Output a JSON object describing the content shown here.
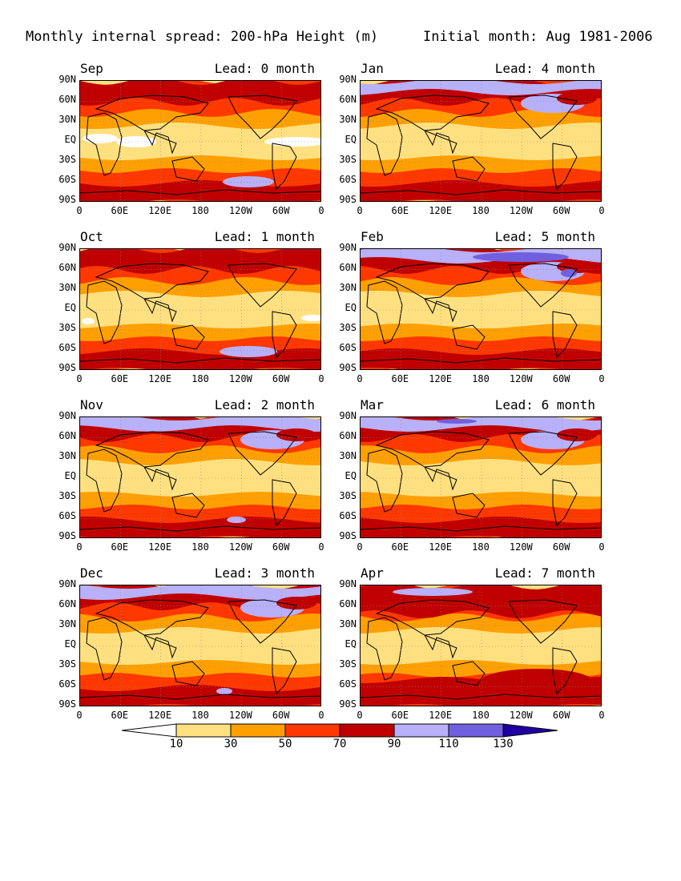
{
  "figure": {
    "title_left": "Monthly internal spread: 200-hPa Height (m)",
    "title_right": "Initial month: Aug 1981-2006"
  },
  "axes": {
    "y_ticks": [
      "90N",
      "60N",
      "30N",
      "EQ",
      "30S",
      "60S",
      "90S"
    ],
    "x_ticks_standard": [
      "0",
      "60E",
      "120E",
      "180",
      "120W",
      "60W",
      "0"
    ],
    "x_ticks_apr": [
      "0",
      "60E",
      "120E",
      "180",
      "120W",
      "60W",
      "0"
    ]
  },
  "colors": {
    "under_10": "#ffffff",
    "c10_30": "#ffe080",
    "c30_50": "#ffa000",
    "c50_70": "#ff3800",
    "c70_90": "#c00000",
    "c90_110": "#b8b0f8",
    "c110_130": "#7060e0",
    "over_130": "#2000a0"
  },
  "colorbar": {
    "levels": [
      "10",
      "30",
      "50",
      "70",
      "90",
      "110",
      "130"
    ]
  },
  "panels": [
    {
      "month": "Sep",
      "lead": "Lead: 0 month",
      "col": 0,
      "row": 0
    },
    {
      "month": "Jan",
      "lead": "Lead: 4 month",
      "col": 1,
      "row": 0
    },
    {
      "month": "Oct",
      "lead": "Lead: 1 month",
      "col": 0,
      "row": 1
    },
    {
      "month": "Feb",
      "lead": "Lead: 5 month",
      "col": 1,
      "row": 1
    },
    {
      "month": "Nov",
      "lead": "Lead: 2 month",
      "col": 0,
      "row": 2
    },
    {
      "month": "Mar",
      "lead": "Lead: 6 month",
      "col": 1,
      "row": 2
    },
    {
      "month": "Dec",
      "lead": "Lead: 3 month",
      "col": 0,
      "row": 3
    },
    {
      "month": "Apr",
      "lead": "Lead: 7 month",
      "col": 1,
      "row": 3
    }
  ]
}
